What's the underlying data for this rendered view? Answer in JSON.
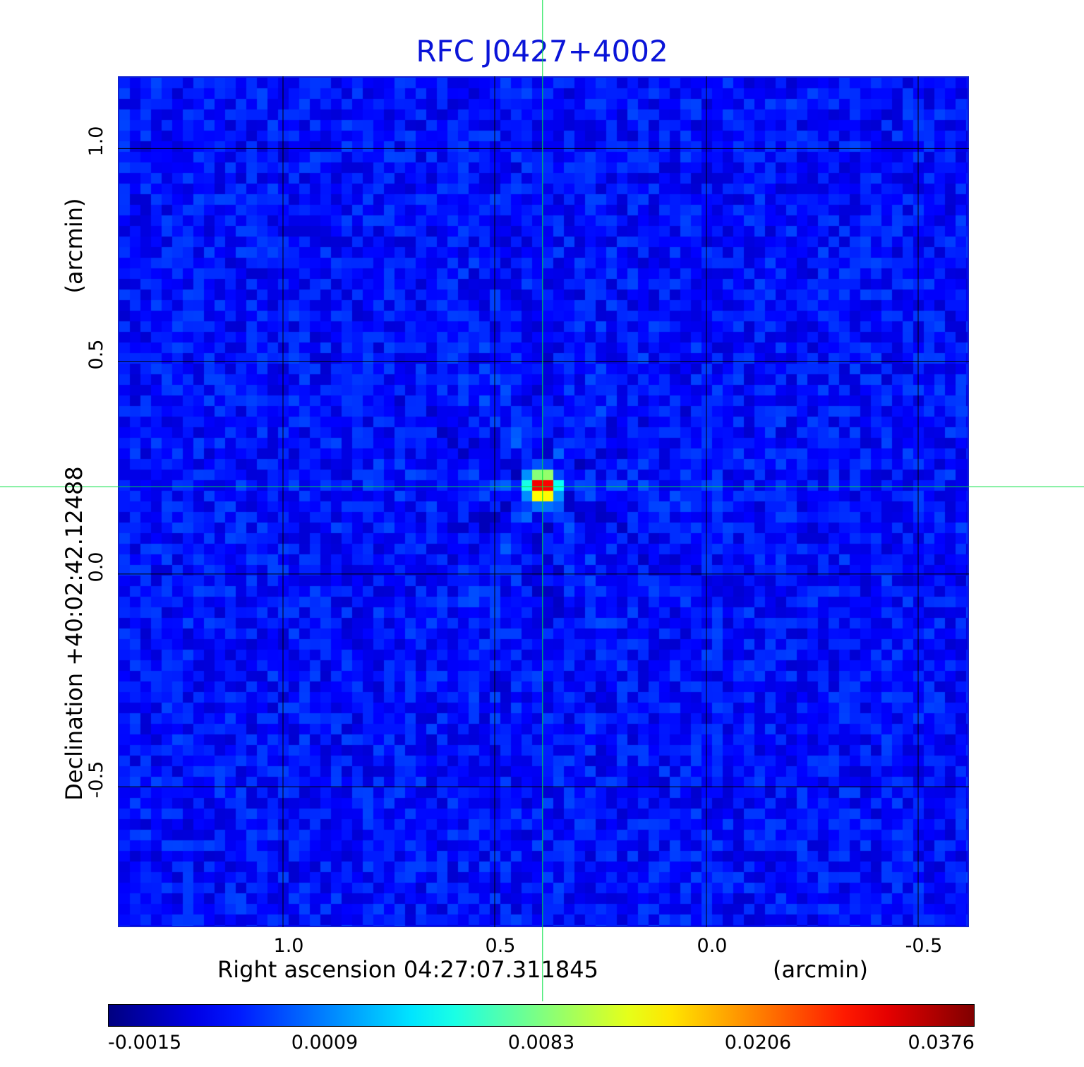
{
  "chart_data": {
    "type": "heatmap",
    "title": "RFC J0427+4002",
    "xlabel": "Right ascension  04:27:07.311845",
    "xunit": "(arcmin)",
    "ylabel": "Declination  +40:02:42.12488",
    "yunit": "(arcmin)",
    "x_axis_reversed": true,
    "xlim": [
      1.39,
      -0.62
    ],
    "ylim": [
      -0.83,
      1.17
    ],
    "x_ticks": [
      {
        "value": 1.0,
        "label": "1.0"
      },
      {
        "value": 0.5,
        "label": "0.5"
      },
      {
        "value": 0.0,
        "label": "0.0"
      },
      {
        "value": -0.5,
        "label": "-0.5"
      }
    ],
    "y_ticks": [
      {
        "value": 1.0,
        "label": "1.0"
      },
      {
        "value": 0.5,
        "label": "0.5"
      },
      {
        "value": 0.0,
        "label": "0.0"
      },
      {
        "value": -0.5,
        "label": "-0.5"
      }
    ],
    "grid": true,
    "grid_color": "#000000",
    "crosshair": {
      "x": 0.387,
      "y": 0.205,
      "color": "#00e040"
    },
    "source_peak": {
      "x": 0.387,
      "y": 0.205,
      "value": 0.0376
    },
    "background_level": -0.0002,
    "colormap": "jet",
    "colorbar": {
      "ticks": [
        {
          "value": -0.0015,
          "label": "-0.0015"
        },
        {
          "value": 0.0009,
          "label": "0.0009"
        },
        {
          "value": 0.0083,
          "label": "0.0083"
        },
        {
          "value": 0.0206,
          "label": "0.0206"
        },
        {
          "value": 0.0376,
          "label": "0.0376"
        }
      ]
    },
    "title_color": "#0a14d8",
    "frame_color": "#1020d0"
  }
}
